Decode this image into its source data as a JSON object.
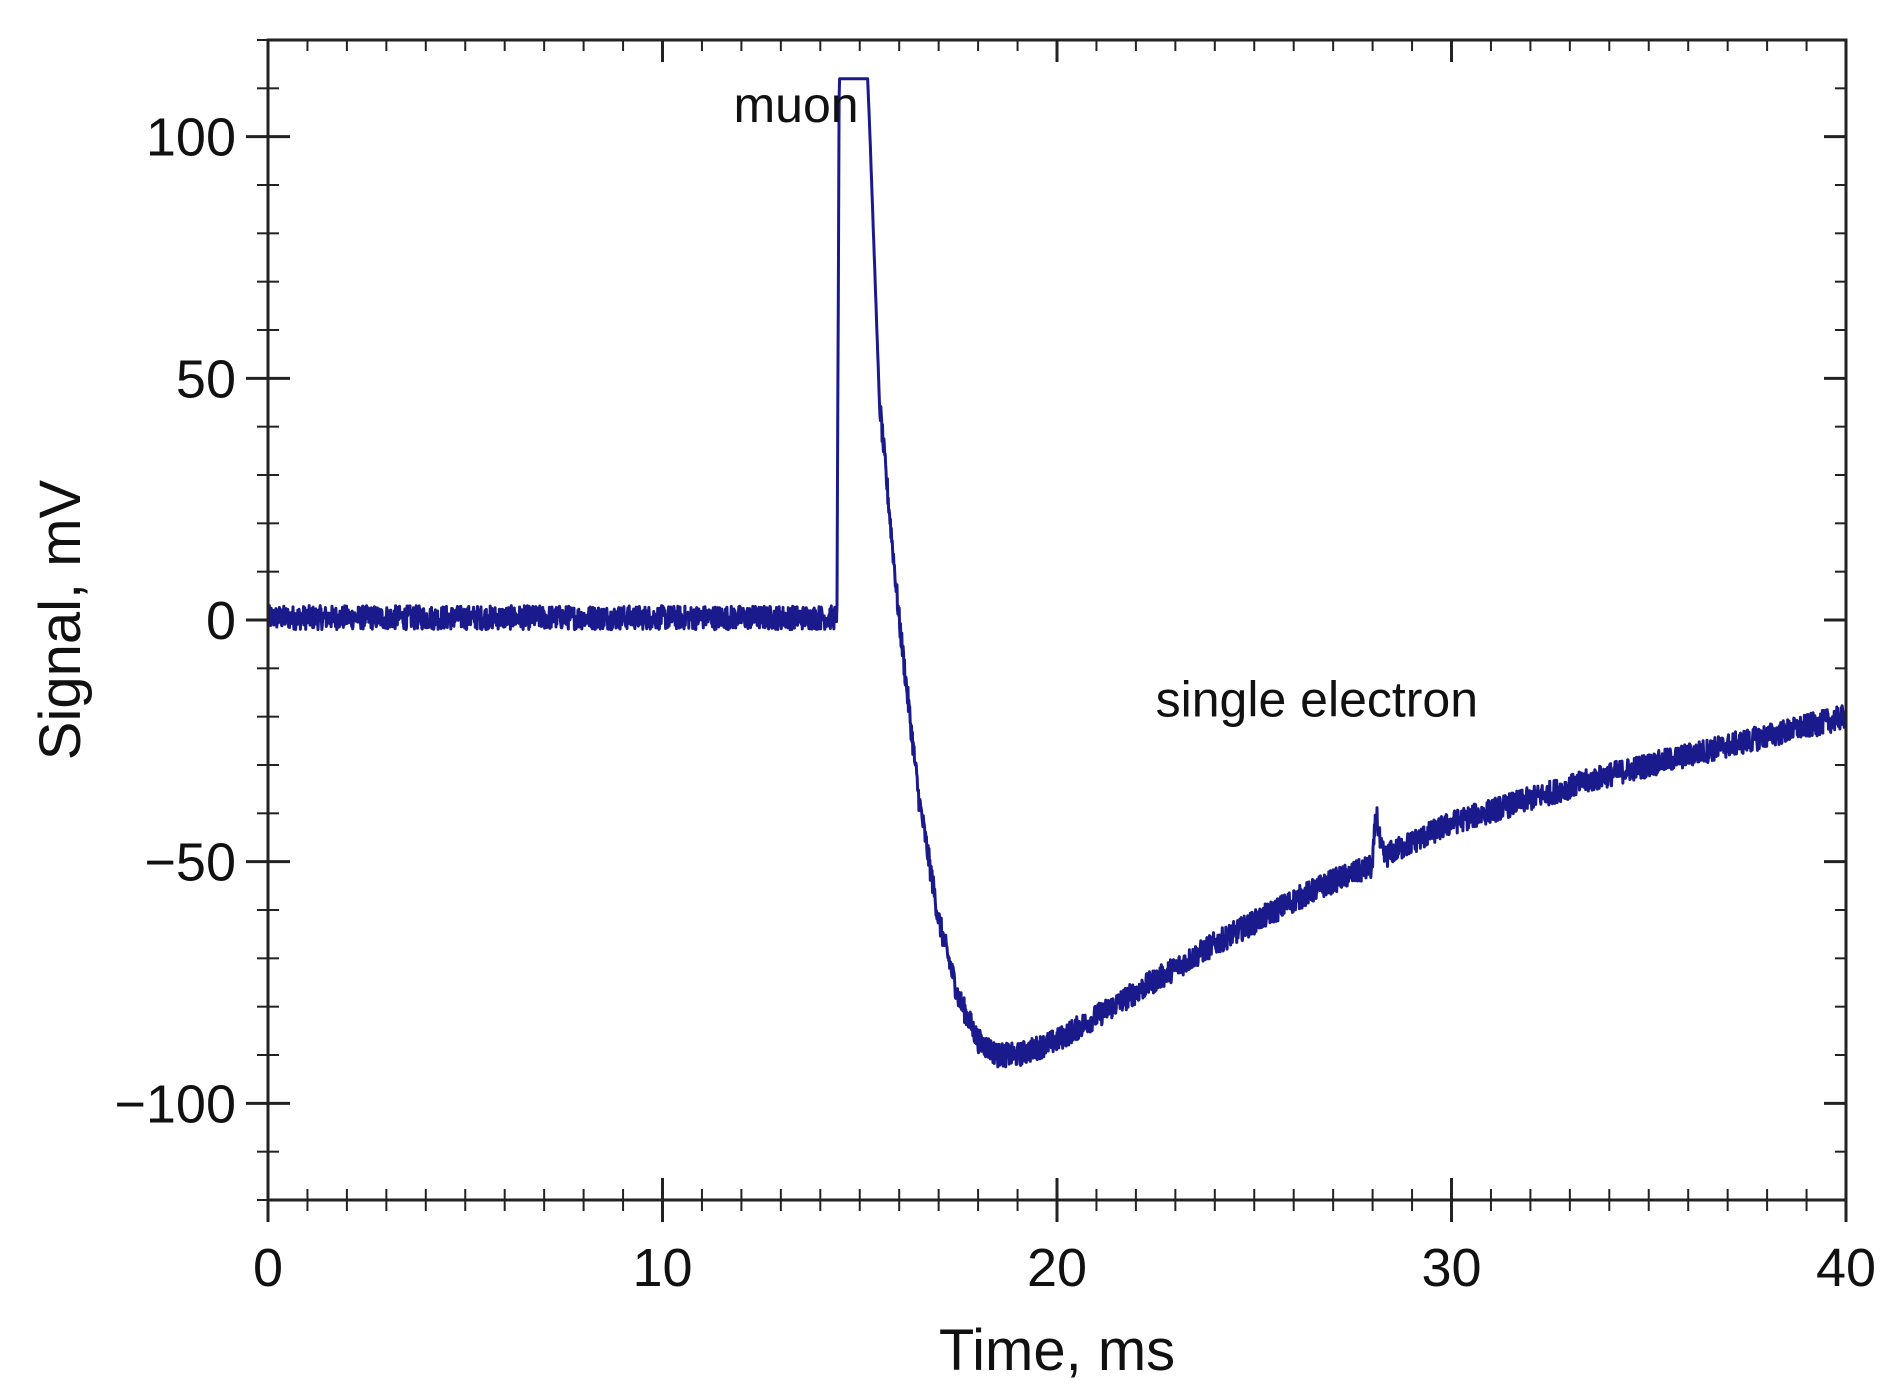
{
  "chart_data": {
    "type": "line",
    "title": "",
    "xlabel": "Time, ms",
    "ylabel": "Signal, mV",
    "xlim": [
      0,
      40
    ],
    "ylim": [
      -120,
      120
    ],
    "x_ticks": [
      0,
      10,
      20,
      30,
      40
    ],
    "x_tick_labels": [
      "0",
      "10",
      "20",
      "30",
      "40"
    ],
    "x_minor_step": 1,
    "y_ticks": [
      100,
      50,
      0,
      -50,
      -100
    ],
    "y_tick_labels": [
      "100",
      "50",
      "0",
      "−50",
      "−100"
    ],
    "y_minor_step": 10,
    "grid": false,
    "colors": {
      "series": "#1a1a8c",
      "axis": "#222222"
    },
    "annotations": [
      {
        "text": "muon",
        "x": 11.8,
        "y": 103
      },
      {
        "text": "single electron",
        "x": 22.5,
        "y": -20
      }
    ],
    "series": [
      {
        "name": "signal",
        "noise_amplitude_mV": 2.5,
        "x": [
          0,
          14.4,
          14.42,
          14.48,
          15.2,
          15.26,
          15.5,
          16.0,
          16.5,
          17.0,
          17.5,
          18.0,
          18.5,
          19.0,
          20.0,
          22.0,
          24.0,
          26.0,
          27.0,
          28.0,
          28.05,
          28.1,
          28.2,
          28.3,
          28.5,
          30.0,
          32.0,
          34.0,
          36.0,
          38.0,
          40.0
        ],
        "values": [
          0.5,
          0.5,
          -1,
          112,
          112,
          100,
          45,
          0,
          -37,
          -62,
          -78,
          -87,
          -90,
          -90,
          -87,
          -77,
          -67,
          -58,
          -54,
          -51,
          -44,
          -40,
          -47,
          -49,
          -48,
          -42,
          -37,
          -32,
          -28,
          -24,
          -20
        ]
      }
    ]
  }
}
